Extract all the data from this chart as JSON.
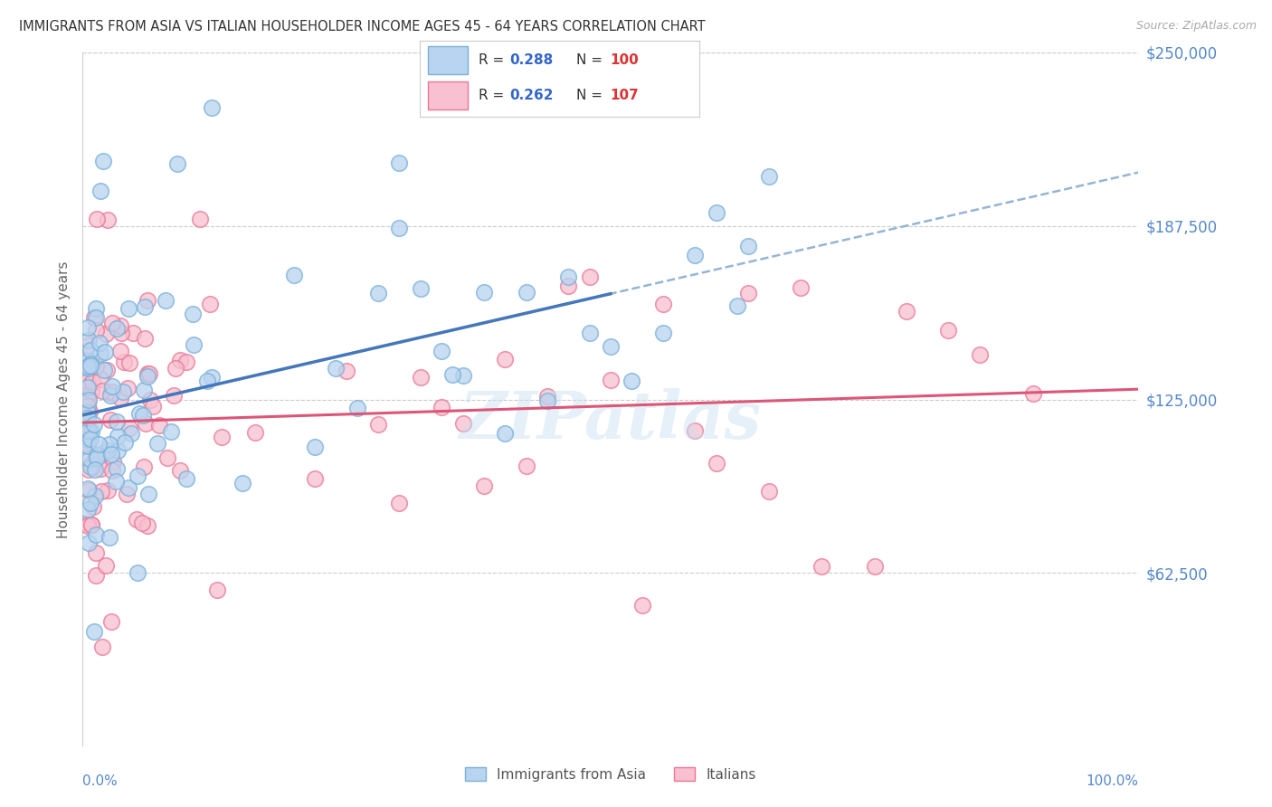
{
  "title": "IMMIGRANTS FROM ASIA VS ITALIAN HOUSEHOLDER INCOME AGES 45 - 64 YEARS CORRELATION CHART",
  "source": "Source: ZipAtlas.com",
  "ylabel": "Householder Income Ages 45 - 64 years",
  "ytick_labels": [
    "$62,500",
    "$125,000",
    "$187,500",
    "$250,000"
  ],
  "ytick_values": [
    62500,
    125000,
    187500,
    250000
  ],
  "ymax": 250000,
  "ymin": 0,
  "xmin": 0.0,
  "xmax": 1.0,
  "watermark": "ZIPatlas",
  "title_color": "#333333",
  "source_color": "#aaaaaa",
  "axis_tick_color": "#5588cc",
  "ylabel_color": "#666666",
  "grid_color": "#cccccc",
  "background_color": "#ffffff",
  "asia_color_face": "#b8d4f0",
  "asia_color_edge": "#7ab0d8",
  "italian_color_face": "#f8c0d0",
  "italian_color_edge": "#e87898",
  "asia_trend_color": "#4477bb",
  "italian_trend_color": "#dd5577",
  "leg_r1": "0.288",
  "leg_n1": "100",
  "leg_r2": "0.262",
  "leg_n2": "107",
  "leg_r_color": "#3366cc",
  "leg_n_color": "#dd3333",
  "leg_text_color": "#333333"
}
